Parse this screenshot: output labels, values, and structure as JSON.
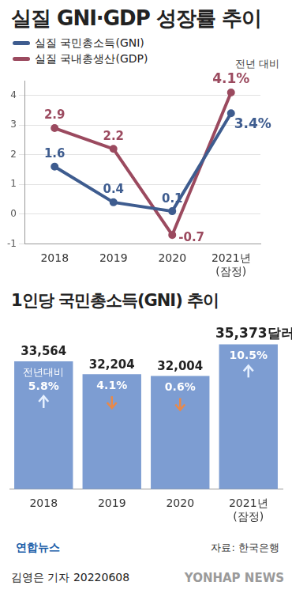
{
  "chart_data": [
    {
      "type": "line",
      "title": "실질 GNI·GDP 성장률 추이",
      "annotation": "전년 대비",
      "categories": [
        "2018",
        "2019",
        "2020",
        "2021년\n(잠정)"
      ],
      "series": [
        {
          "name": "실질 국민총소득(GNI)",
          "color": "#3e5c8f",
          "values": [
            1.6,
            0.4,
            0.1,
            3.4
          ],
          "value_labels": [
            "1.6",
            "0.4",
            "0.1",
            "3.4%"
          ],
          "marker": "circle"
        },
        {
          "name": "실질 국내총생산(GDP)",
          "color": "#9b4a5f",
          "values": [
            2.9,
            2.2,
            -0.7,
            4.1
          ],
          "value_labels": [
            "2.9",
            "2.2",
            "-0.7",
            "4.1%"
          ],
          "marker": "circle"
        }
      ],
      "ylim": [
        -1,
        4.5
      ],
      "yticks": [
        -1,
        0,
        1,
        2,
        3,
        4
      ],
      "grid": true,
      "legend": "top-left",
      "data_labels": true
    },
    {
      "type": "bar",
      "title": "1인당 국민총소득(GNI) 추이",
      "categories": [
        "2018",
        "2019",
        "2020",
        "2021년\n(잠정)"
      ],
      "values": [
        33564,
        32204,
        32004,
        35373
      ],
      "value_labels": [
        "33,564",
        "32,204",
        "32,004",
        "35,373달러"
      ],
      "color": "#7d9dd2",
      "ylim": [
        20000,
        36500
      ],
      "tick_labels": "x",
      "data_labels": true,
      "change_label": "전년대비",
      "change_values": [
        5.8,
        -4.1,
        -0.6,
        10.5
      ],
      "change_labels": [
        "5.8%",
        "4.1%",
        "0.6%",
        "10.5%"
      ]
    }
  ],
  "footer": {
    "logo": "연합뉴스",
    "source": "자료: 한국은행",
    "byline": "김영은 기자  20220608",
    "watermark": "YONHAP NEWS"
  }
}
